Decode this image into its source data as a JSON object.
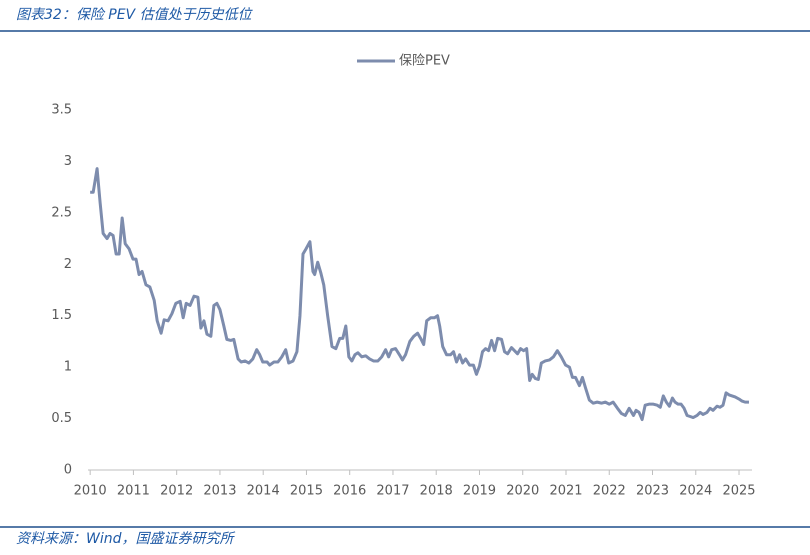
{
  "chart_data": {
    "type": "line",
    "title": "图表32：保险 PEV 估值处于历史低位",
    "source": "资料来源：Wind，国盛证券研究所",
    "x": [
      2010.0,
      2010.07,
      2010.16,
      2010.23,
      2010.3,
      2010.39,
      2010.46,
      2010.53,
      2010.6,
      2010.67,
      2010.74,
      2010.81,
      2010.9,
      2010.99,
      2011.06,
      2011.13,
      2011.2,
      2011.29,
      2011.38,
      2011.48,
      2011.55,
      2011.64,
      2011.71,
      2011.8,
      2011.89,
      2011.98,
      2012.08,
      2012.15,
      2012.22,
      2012.31,
      2012.4,
      2012.49,
      2012.56,
      2012.63,
      2012.7,
      2012.79,
      2012.86,
      2012.93,
      2013.0,
      2013.09,
      2013.16,
      2013.25,
      2013.32,
      2013.42,
      2013.49,
      2013.58,
      2013.67,
      2013.76,
      2013.85,
      2013.92,
      2013.99,
      2014.09,
      2014.15,
      2014.25,
      2014.34,
      2014.43,
      2014.52,
      2014.59,
      2014.69,
      2014.78,
      2014.85,
      2014.92,
      2014.99,
      2015.08,
      2015.15,
      2015.19,
      2015.26,
      2015.33,
      2015.4,
      2015.49,
      2015.59,
      2015.68,
      2015.77,
      2015.84,
      2015.91,
      2015.98,
      2016.05,
      2016.12,
      2016.19,
      2016.28,
      2016.37,
      2016.46,
      2016.55,
      2016.65,
      2016.74,
      2016.83,
      2016.9,
      2016.97,
      2017.06,
      2017.15,
      2017.22,
      2017.29,
      2017.39,
      2017.48,
      2017.57,
      2017.64,
      2017.71,
      2017.78,
      2017.87,
      2017.96,
      2018.03,
      2018.08,
      2018.15,
      2018.24,
      2018.33,
      2018.4,
      2018.47,
      2018.54,
      2018.61,
      2018.68,
      2018.77,
      2018.86,
      2018.93,
      2019.0,
      2019.07,
      2019.14,
      2019.21,
      2019.28,
      2019.35,
      2019.42,
      2019.51,
      2019.58,
      2019.65,
      2019.74,
      2019.81,
      2019.88,
      2019.95,
      2020.02,
      2020.09,
      2020.16,
      2020.22,
      2020.29,
      2020.36,
      2020.43,
      2020.52,
      2020.62,
      2020.71,
      2020.8,
      2020.89,
      2020.99,
      2021.08,
      2021.15,
      2021.22,
      2021.31,
      2021.38,
      2021.45,
      2021.54,
      2021.63,
      2021.72,
      2021.82,
      2021.91,
      2022.0,
      2022.09,
      2022.19,
      2022.28,
      2022.37,
      2022.46,
      2022.56,
      2022.62,
      2022.69,
      2022.76,
      2022.83,
      2022.92,
      2023.02,
      2023.11,
      2023.18,
      2023.25,
      2023.32,
      2023.39,
      2023.46,
      2023.52,
      2023.59,
      2023.66,
      2023.73,
      2023.8,
      2023.87,
      2023.94,
      2024.03,
      2024.1,
      2024.17,
      2024.26,
      2024.33,
      2024.4,
      2024.49,
      2024.56,
      2024.63,
      2024.7,
      2024.77,
      2024.84,
      2024.91,
      2025.0,
      2025.07,
      2025.14,
      2025.23
    ],
    "series": [
      {
        "name": "保险PEV",
        "color": "#7d8cad",
        "values": [
          2.7,
          2.7,
          2.93,
          2.6,
          2.3,
          2.25,
          2.3,
          2.28,
          2.1,
          2.1,
          2.45,
          2.2,
          2.15,
          2.05,
          2.05,
          1.9,
          1.93,
          1.8,
          1.78,
          1.65,
          1.45,
          1.33,
          1.46,
          1.45,
          1.52,
          1.62,
          1.64,
          1.48,
          1.62,
          1.6,
          1.69,
          1.68,
          1.38,
          1.45,
          1.32,
          1.3,
          1.6,
          1.62,
          1.56,
          1.4,
          1.27,
          1.26,
          1.27,
          1.08,
          1.05,
          1.06,
          1.04,
          1.08,
          1.17,
          1.12,
          1.05,
          1.05,
          1.02,
          1.05,
          1.05,
          1.1,
          1.17,
          1.04,
          1.06,
          1.15,
          1.5,
          2.1,
          2.15,
          2.22,
          1.93,
          1.9,
          2.02,
          1.92,
          1.8,
          1.5,
          1.2,
          1.18,
          1.28,
          1.28,
          1.4,
          1.1,
          1.06,
          1.12,
          1.14,
          1.1,
          1.11,
          1.08,
          1.06,
          1.06,
          1.1,
          1.17,
          1.1,
          1.17,
          1.18,
          1.12,
          1.07,
          1.12,
          1.25,
          1.3,
          1.33,
          1.28,
          1.22,
          1.45,
          1.48,
          1.48,
          1.5,
          1.4,
          1.2,
          1.12,
          1.12,
          1.15,
          1.05,
          1.12,
          1.04,
          1.08,
          1.02,
          1.02,
          0.93,
          1.01,
          1.15,
          1.18,
          1.16,
          1.26,
          1.16,
          1.28,
          1.27,
          1.15,
          1.13,
          1.19,
          1.16,
          1.13,
          1.18,
          1.16,
          1.18,
          0.87,
          0.93,
          0.89,
          0.88,
          1.04,
          1.06,
          1.07,
          1.1,
          1.16,
          1.1,
          1.02,
          1.0,
          0.9,
          0.9,
          0.82,
          0.9,
          0.8,
          0.68,
          0.65,
          0.66,
          0.65,
          0.66,
          0.64,
          0.66,
          0.6,
          0.55,
          0.53,
          0.6,
          0.53,
          0.58,
          0.56,
          0.49,
          0.63,
          0.64,
          0.64,
          0.63,
          0.61,
          0.72,
          0.66,
          0.62,
          0.7,
          0.66,
          0.64,
          0.64,
          0.6,
          0.53,
          0.52,
          0.51,
          0.53,
          0.56,
          0.54,
          0.56,
          0.6,
          0.58,
          0.62,
          0.61,
          0.63,
          0.75,
          0.73,
          0.72,
          0.71,
          0.69,
          0.67,
          0.66,
          0.66
        ]
      }
    ],
    "xlim": [
      2009.95,
      2025.3
    ],
    "xticks": [
      2010,
      2011,
      2012,
      2013,
      2014,
      2015,
      2016,
      2017,
      2018,
      2019,
      2020,
      2021,
      2022,
      2023,
      2024,
      2025
    ],
    "ylim": [
      0,
      3.5
    ],
    "yticks": [
      0,
      0.5,
      1,
      1.5,
      2,
      2.5,
      3,
      3.5
    ],
    "grid": false,
    "legend": "top"
  }
}
